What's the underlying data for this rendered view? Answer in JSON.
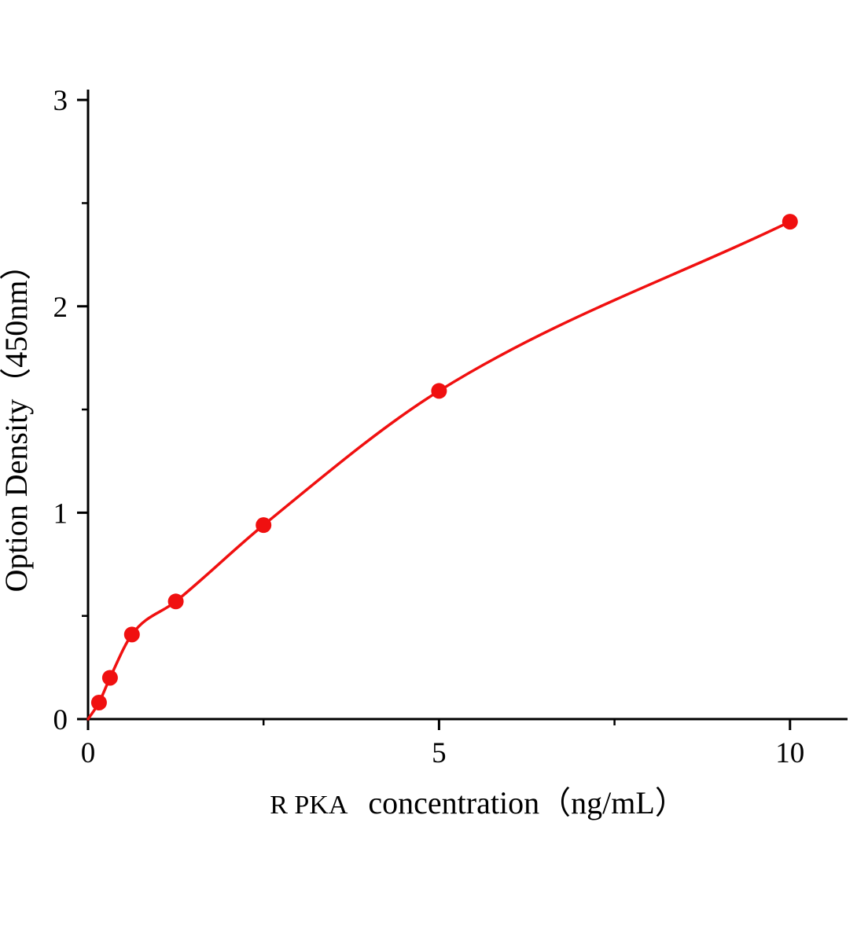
{
  "chart_data": {
    "type": "scatter",
    "title": "",
    "xlabel": "R PKA concentration（ng/mL）",
    "xlabel_parts": {
      "prefix": "R PKA",
      "rest": "concentration（ng/mL）"
    },
    "ylabel": "Option Density（450nm）",
    "x": [
      0.156,
      0.3125,
      0.625,
      1.25,
      2.5,
      5,
      10
    ],
    "y": [
      0.08,
      0.2,
      0.41,
      0.57,
      0.94,
      1.59,
      2.41
    ],
    "fit_line": {
      "x": [
        0,
        0.156,
        0.3125,
        0.625,
        1.25,
        2.5,
        5,
        10
      ],
      "y": [
        0,
        0.08,
        0.2,
        0.41,
        0.57,
        0.94,
        1.59,
        2.41
      ]
    },
    "xlim": [
      0,
      10.82
    ],
    "ylim": [
      0,
      3.05
    ],
    "x_major_ticks": [
      0,
      5,
      10
    ],
    "x_minor_ticks": [
      2.5,
      7.5
    ],
    "y_major_ticks": [
      0,
      1,
      2,
      3
    ],
    "y_minor_ticks": [
      0.5,
      1.5,
      2.5
    ],
    "x_tick_labels": [
      "0",
      "5",
      "10"
    ],
    "y_tick_labels": [
      "0",
      "1",
      "2",
      "3"
    ],
    "grid": false,
    "legend": null,
    "marker_color": "#f01010",
    "line_color": "#f01010",
    "axis_color": "#000000",
    "marker_radius": 10
  }
}
